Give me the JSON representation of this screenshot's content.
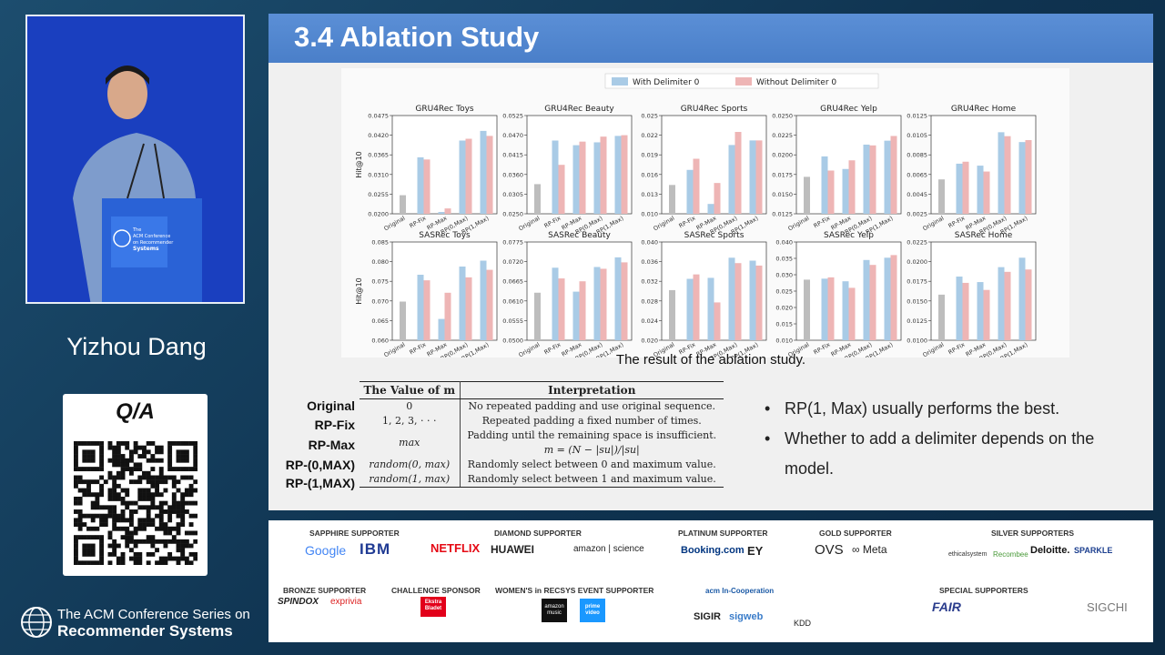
{
  "speaker": {
    "name": "Yizhou Dang",
    "podium_text": [
      "The",
      "ACM Conference",
      "on Recommender",
      "Systems"
    ]
  },
  "qa": {
    "title": "Q/A"
  },
  "conference": {
    "line1": "The ACM Conference Series on",
    "line2": "Recommender Systems"
  },
  "slide": {
    "title": "3.4 Ablation Study",
    "caption": "The result of the ablation study.",
    "bullets": [
      "RP(1, Max) usually performs the best.",
      "Whether to add a delimiter depends on the model."
    ],
    "table": {
      "headers": [
        "The Value of m",
        "Interpretation"
      ],
      "rows": [
        {
          "label": "Original",
          "value": "0",
          "interp": "No repeated padding and use original sequence."
        },
        {
          "label": "RP-Fix",
          "value": "1, 2, 3, · · ·",
          "interp": "Repeated padding a fixed number of times."
        },
        {
          "label": "RP-Max",
          "value": "max",
          "interp": "Padding until the remaining space is insufficient.",
          "interp2": "m = (N − |su|)/|su|"
        },
        {
          "label": "RP-(0,MAX)",
          "value": "random(0, max)",
          "interp": "Randomly select between 0 and maximum value."
        },
        {
          "label": "RP-(1,MAX)",
          "value": "random(1, max)",
          "interp": "Randomly select between 1 and maximum value."
        }
      ]
    }
  },
  "chart_data": {
    "type": "bar",
    "legend": [
      "With Delimiter 0",
      "Without Delimiter 0"
    ],
    "legend_placement": "top-center",
    "ylabel": "Hit@10",
    "categories": [
      "Original",
      "RP-Fix",
      "RP-Max",
      "RP(0,Max)",
      "RP(1,Max)"
    ],
    "colors": {
      "original": "#bdbdbd",
      "with": "#a9cbe6",
      "without": "#eeb5b5"
    },
    "panels": [
      {
        "title": "GRU4Rec Toys",
        "ylim": [
          0.02,
          0.0475
        ],
        "ticks": [
          "0.0475",
          "0.0420",
          "0.0365",
          "0.0310",
          "0.0255",
          "0.0200"
        ],
        "original": 0.0252,
        "with": [
          0.0358,
          0.0205,
          0.0405,
          0.0432
        ],
        "without": [
          0.0352,
          0.0215,
          0.041,
          0.0418
        ]
      },
      {
        "title": "GRU4Rec Beauty",
        "ylim": [
          0.025,
          0.0525
        ],
        "ticks": [
          "0.0525",
          "0.0470",
          "0.0415",
          "0.0360",
          "0.0305",
          "0.0250"
        ],
        "original": 0.0333,
        "with": [
          0.0455,
          0.0442,
          0.045,
          0.0468
        ],
        "without": [
          0.0387,
          0.0452,
          0.0466,
          0.047
        ]
      },
      {
        "title": "GRU4Rec Sports",
        "ylim": [
          0.01,
          0.025
        ],
        "ticks": [
          "0.025",
          "0.022",
          "0.019",
          "0.016",
          "0.013",
          "0.010"
        ],
        "original": 0.0144,
        "with": [
          0.0167,
          0.0115,
          0.0205,
          0.0212
        ],
        "without": [
          0.0184,
          0.0147,
          0.0225,
          0.0212
        ]
      },
      {
        "title": "GRU4Rec Yelp",
        "ylim": [
          0.0125,
          0.025
        ],
        "ticks": [
          "0.0250",
          "0.0225",
          "0.0200",
          "0.0175",
          "0.0150",
          "0.0125"
        ],
        "original": 0.0172,
        "with": [
          0.0198,
          0.0182,
          0.0213,
          0.0218
        ],
        "without": [
          0.018,
          0.0193,
          0.0212,
          0.0224
        ]
      },
      {
        "title": "GRU4Rec Home",
        "ylim": [
          0.0025,
          0.0125
        ],
        "ticks": [
          "0.0125",
          "0.0105",
          "0.0085",
          "0.0065",
          "0.0045",
          "0.0025"
        ],
        "original": 0.006,
        "with": [
          0.0076,
          0.0074,
          0.0108,
          0.0098
        ],
        "without": [
          0.0078,
          0.0068,
          0.0104,
          0.01
        ]
      },
      {
        "title": "SASRec Toys",
        "ylim": [
          0.06,
          0.09
        ],
        "ticks": [
          "0.085",
          "0.080",
          "0.075",
          "0.070",
          "0.065",
          "0.060"
        ],
        "original": 0.0718,
        "with": [
          0.08,
          0.0665,
          0.0825,
          0.0843
        ],
        "without": [
          0.0783,
          0.0745,
          0.0792,
          0.0815
        ]
      },
      {
        "title": "SASRec Beauty",
        "ylim": [
          0.05,
          0.0775
        ],
        "ticks": [
          "0.0775",
          "0.0720",
          "0.0665",
          "0.0610",
          "0.0555",
          "0.0500"
        ],
        "original": 0.0633,
        "with": [
          0.0703,
          0.0636,
          0.0705,
          0.0732
        ],
        "without": [
          0.0673,
          0.0665,
          0.07,
          0.0718
        ]
      },
      {
        "title": "SASRec Sports",
        "ylim": [
          0.02,
          0.04
        ],
        "ticks": [
          "0.040",
          "0.036",
          "0.032",
          "0.028",
          "0.024",
          "0.020"
        ],
        "original": 0.0302,
        "with": [
          0.0325,
          0.0327,
          0.0368,
          0.0362
        ],
        "without": [
          0.0334,
          0.0277,
          0.0357,
          0.0352
        ]
      },
      {
        "title": "SASRec Yelp",
        "ylim": [
          0.01,
          0.04
        ],
        "ticks": [
          "0.040",
          "0.035",
          "0.030",
          "0.025",
          "0.020",
          "0.015",
          "0.010"
        ],
        "original": 0.0285,
        "with": [
          0.0288,
          0.028,
          0.0345,
          0.0352
        ],
        "without": [
          0.0292,
          0.026,
          0.033,
          0.036
        ]
      },
      {
        "title": "SASRec Home",
        "ylim": [
          0.01,
          0.0225
        ],
        "ticks": [
          "0.0225",
          "0.0200",
          "0.0175",
          "0.0150",
          "0.0125",
          "0.0100"
        ],
        "original": 0.0158,
        "with": [
          0.0181,
          0.0174,
          0.0193,
          0.0205
        ],
        "without": [
          0.0173,
          0.0164,
          0.0187,
          0.019
        ]
      }
    ]
  },
  "sponsors": {
    "sapphire": {
      "title": "SAPPHIRE SUPPORTER",
      "logos": [
        "Google",
        "IBM"
      ]
    },
    "diamond": {
      "title": "DIAMOND SUPPORTER",
      "logos": [
        "NETFLIX",
        "HUAWEI",
        "amazon | science"
      ]
    },
    "platinum": {
      "title": "PLATINUM SUPPORTER",
      "logos": [
        "Booking.com",
        "EY"
      ]
    },
    "gold": {
      "title": "GOLD SUPPORTER",
      "logos": [
        "OVS",
        "∞ Meta"
      ]
    },
    "silver": {
      "title": "SILVER SUPPORTERS",
      "logos": [
        "ethicalsystem",
        "Recombee",
        "Deloitte.",
        "SPARKLE"
      ]
    },
    "bronze": {
      "title": "BRONZE SUPPORTER",
      "logos": [
        "SPINDOX",
        "exprivia"
      ]
    },
    "challenge": {
      "title": "CHALLENGE SPONSOR",
      "logos": [
        "Ekstra Bladet"
      ]
    },
    "womens": {
      "title": "WOMEN'S in RECSYS EVENT SUPPORTER",
      "logos": [
        "amazon music",
        "prime video"
      ]
    },
    "acm": {
      "logos": [
        "acm In-Cooperation",
        "SIGIR",
        "sigweb",
        "KDD"
      ]
    },
    "special": {
      "title": "SPECIAL SUPPORTERS",
      "logos": [
        "FAIR",
        "SIGCHI"
      ]
    }
  }
}
